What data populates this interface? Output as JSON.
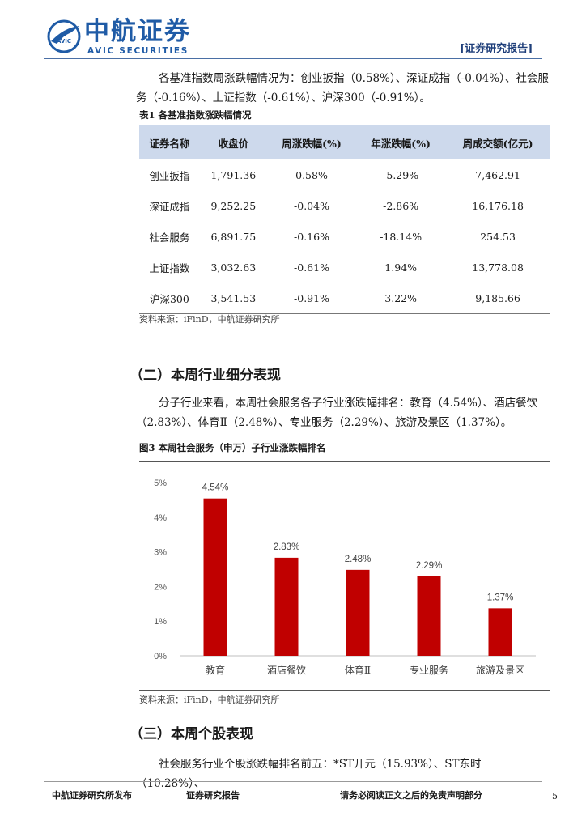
{
  "header": {
    "logo_cn": "中航证券",
    "logo_en": "AVIC SECURITIES",
    "emblem_text": "AVIC",
    "tag": "[证券研究报告]",
    "accent": "#1f5ba6"
  },
  "intro": "各基准指数周涨跌幅情况为：创业扳指（0.58%）、深证成指（-0.04%）、社会服务（-0.16%）、上证指数（-0.61%）、沪深300（-0.91%）。",
  "table": {
    "caption": "表1 各基准指数涨跌幅情况",
    "headers": [
      "证券名称",
      "收盘价",
      "周涨跌幅(%)",
      "年涨跌幅(%)",
      "周成交额(亿元)"
    ],
    "rows": [
      [
        "创业扳指",
        "1,791.36",
        "0.58%",
        "-5.29%",
        "7,462.91"
      ],
      [
        "深证成指",
        "9,252.25",
        "-0.04%",
        "-2.86%",
        "16,176.18"
      ],
      [
        "社会服务",
        "6,891.75",
        "-0.16%",
        "-18.14%",
        "254.53"
      ],
      [
        "上证指数",
        "3,032.63",
        "-0.61%",
        "1.94%",
        "13,778.08"
      ],
      [
        "沪深300",
        "3,541.53",
        "-0.91%",
        "3.22%",
        "9,185.66"
      ]
    ],
    "header_bg": "#cdd9ec",
    "source": "资料来源：iFinD，中航证券研究所"
  },
  "section2": {
    "heading": "（二）本周行业细分表现",
    "body": "分子行业来看，本周社会服务各子行业涨跌幅排名：教育（4.54%）、酒店餐饮（2.83%）、体育Ⅱ（2.48%）、专业服务（2.29%）、旅游及景区（1.37%）。"
  },
  "figure": {
    "caption": "图3 本周社会服务（申万）子行业涨跌幅排名",
    "source": "资料来源：iFinD，中航证券研究所"
  },
  "chart_data": {
    "type": "bar",
    "categories": [
      "教育",
      "酒店餐饮",
      "体育Ⅱ",
      "专业服务",
      "旅游及景区"
    ],
    "values": [
      4.54,
      2.83,
      2.48,
      2.29,
      1.37
    ],
    "data_labels": [
      "4.54%",
      "2.83%",
      "2.48%",
      "2.29%",
      "1.37%"
    ],
    "y_ticks": [
      "0%",
      "1%",
      "2%",
      "3%",
      "4%",
      "5%"
    ],
    "ylim": [
      0,
      5
    ],
    "grid": false,
    "bar_color": "#c00000"
  },
  "section3": {
    "heading": "（三）本周个股表现",
    "body": "社会服务行业个股涨跌幅排名前五：*ST开元（15.93%）、ST东时（10.28%）、"
  },
  "footer": {
    "left": "中航证券研究所发布",
    "middle": "证券研究报告",
    "right": "请务必阅读正文之后的免责声明部分",
    "page": "5"
  }
}
